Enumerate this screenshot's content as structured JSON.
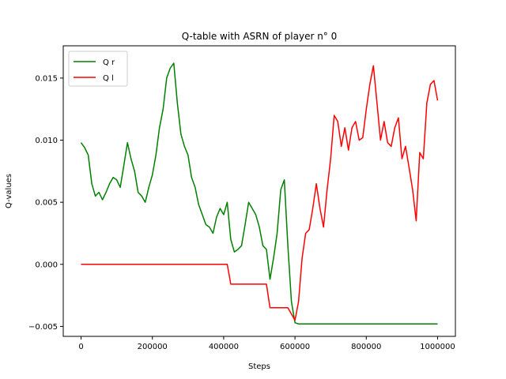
{
  "chart_data": {
    "type": "line",
    "title": "Q-table with ASRN of player n° 0",
    "xlabel": "Steps",
    "ylabel": "Q-values",
    "xlim": [
      -50000,
      1050000
    ],
    "ylim": [
      -0.0058,
      0.0176
    ],
    "xticks": [
      0,
      200000,
      400000,
      600000,
      800000,
      1000000
    ],
    "xtick_labels": [
      "0",
      "200000",
      "400000",
      "600000",
      "800000",
      "1000000"
    ],
    "yticks": [
      -0.005,
      0.0,
      0.005,
      0.01,
      0.015
    ],
    "ytick_labels": [
      "−0.005",
      "0.000",
      "0.005",
      "0.010",
      "0.015"
    ],
    "grid": false,
    "legend_position": "top-left",
    "series": [
      {
        "name": "Q r",
        "color": "#008000",
        "x": [
          0,
          10000,
          20000,
          30000,
          40000,
          50000,
          60000,
          70000,
          80000,
          90000,
          100000,
          110000,
          120000,
          130000,
          140000,
          150000,
          160000,
          170000,
          180000,
          190000,
          200000,
          210000,
          220000,
          230000,
          240000,
          250000,
          260000,
          270000,
          280000,
          290000,
          300000,
          310000,
          320000,
          330000,
          340000,
          350000,
          360000,
          370000,
          380000,
          390000,
          400000,
          410000,
          420000,
          430000,
          440000,
          450000,
          460000,
          470000,
          480000,
          490000,
          500000,
          510000,
          520000,
          530000,
          540000,
          550000,
          560000,
          570000,
          580000,
          590000,
          600000,
          610000,
          620000,
          700000,
          800000,
          900000,
          1000000
        ],
        "y": [
          0.0098,
          0.0094,
          0.0088,
          0.0065,
          0.0055,
          0.0058,
          0.0052,
          0.0058,
          0.0065,
          0.007,
          0.0068,
          0.0062,
          0.008,
          0.0098,
          0.0085,
          0.0075,
          0.0058,
          0.0055,
          0.005,
          0.0062,
          0.0072,
          0.0088,
          0.011,
          0.0125,
          0.015,
          0.0158,
          0.0162,
          0.013,
          0.0105,
          0.0095,
          0.0088,
          0.007,
          0.0062,
          0.0048,
          0.004,
          0.0032,
          0.003,
          0.0025,
          0.0038,
          0.0045,
          0.004,
          0.005,
          0.002,
          0.001,
          0.0012,
          0.0015,
          0.0032,
          0.005,
          0.0045,
          0.004,
          0.003,
          0.0015,
          0.0012,
          -0.0012,
          0.0005,
          0.0025,
          0.006,
          0.0068,
          0.0015,
          -0.003,
          -0.0047,
          -0.0048,
          -0.0048,
          -0.0048,
          -0.0048,
          -0.0048,
          -0.0048
        ]
      },
      {
        "name": "Q l",
        "color": "#ff0000",
        "x": [
          0,
          410000,
          415000,
          420000,
          500000,
          520000,
          530000,
          580000,
          590000,
          600000,
          610000,
          620000,
          630000,
          640000,
          650000,
          660000,
          670000,
          680000,
          690000,
          700000,
          710000,
          720000,
          730000,
          740000,
          750000,
          760000,
          770000,
          780000,
          790000,
          800000,
          810000,
          820000,
          830000,
          840000,
          850000,
          860000,
          870000,
          880000,
          890000,
          900000,
          910000,
          920000,
          930000,
          940000,
          950000,
          960000,
          970000,
          980000,
          990000,
          1000000
        ],
        "y": [
          0.0,
          0.0,
          -0.0008,
          -0.0016,
          -0.0016,
          -0.0016,
          -0.0035,
          -0.0035,
          -0.004,
          -0.0045,
          -0.003,
          0.0005,
          0.0025,
          0.0028,
          0.0045,
          0.0065,
          0.0045,
          0.003,
          0.006,
          0.0085,
          0.012,
          0.0115,
          0.0095,
          0.011,
          0.0092,
          0.011,
          0.0115,
          0.01,
          0.0102,
          0.0125,
          0.0145,
          0.016,
          0.013,
          0.01,
          0.0115,
          0.0098,
          0.0095,
          0.011,
          0.0118,
          0.0085,
          0.0095,
          0.0078,
          0.006,
          0.0035,
          0.009,
          0.0085,
          0.013,
          0.0145,
          0.0148,
          0.0132
        ]
      }
    ]
  }
}
